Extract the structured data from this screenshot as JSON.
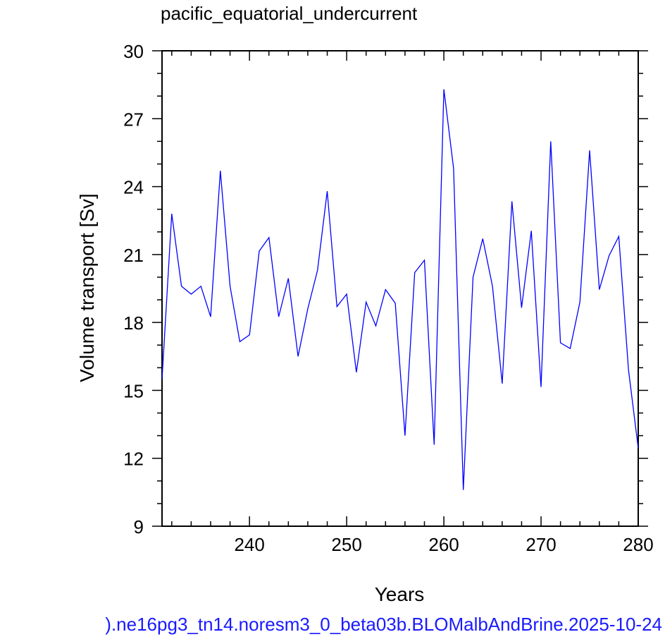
{
  "chart_data": {
    "type": "line",
    "title": "pacific_equatorial_undercurrent",
    "xlabel": "Years",
    "ylabel": "Volume transport [Sv]",
    "xlim": [
      231,
      280
    ],
    "ylim": [
      9,
      30
    ],
    "xticks": [
      "240",
      "250",
      "260",
      "270",
      "280"
    ],
    "yticks": [
      "30",
      "27",
      "24",
      "21",
      "18",
      "15",
      "12",
      "9"
    ],
    "grid": false,
    "series": [
      {
        "color": "#0000ff",
        "x": [
          231,
          232,
          233,
          234,
          235,
          236,
          237,
          238,
          239,
          240,
          241,
          242,
          243,
          244,
          245,
          246,
          247,
          248,
          249,
          250,
          251,
          252,
          253,
          254,
          255,
          256,
          257,
          258,
          259,
          260,
          261,
          262,
          263,
          264,
          265,
          266,
          267,
          268,
          269,
          270,
          271,
          272,
          273,
          274,
          275,
          276,
          277,
          278,
          279,
          280
        ],
        "values": [
          15.5,
          22.8,
          19.6,
          19.25,
          19.6,
          18.25,
          24.7,
          19.6,
          17.15,
          17.45,
          21.15,
          21.75,
          18.25,
          19.95,
          16.5,
          18.6,
          20.3,
          23.8,
          18.7,
          19.25,
          15.8,
          18.9,
          17.85,
          19.45,
          18.85,
          13.0,
          20.2,
          20.75,
          12.6,
          28.3,
          24.8,
          10.6,
          20.0,
          21.7,
          19.6,
          15.3,
          23.35,
          18.65,
          22.05,
          15.15,
          26.0,
          17.1,
          16.85,
          18.9,
          25.6,
          19.45,
          20.95,
          21.8,
          15.9,
          12.45
        ]
      }
    ]
  },
  "footer": {
    "caption": ").ne16pg3_tn14.noresm3_0_beta03b.BLOMalbAndBrine.2025-10-24"
  }
}
